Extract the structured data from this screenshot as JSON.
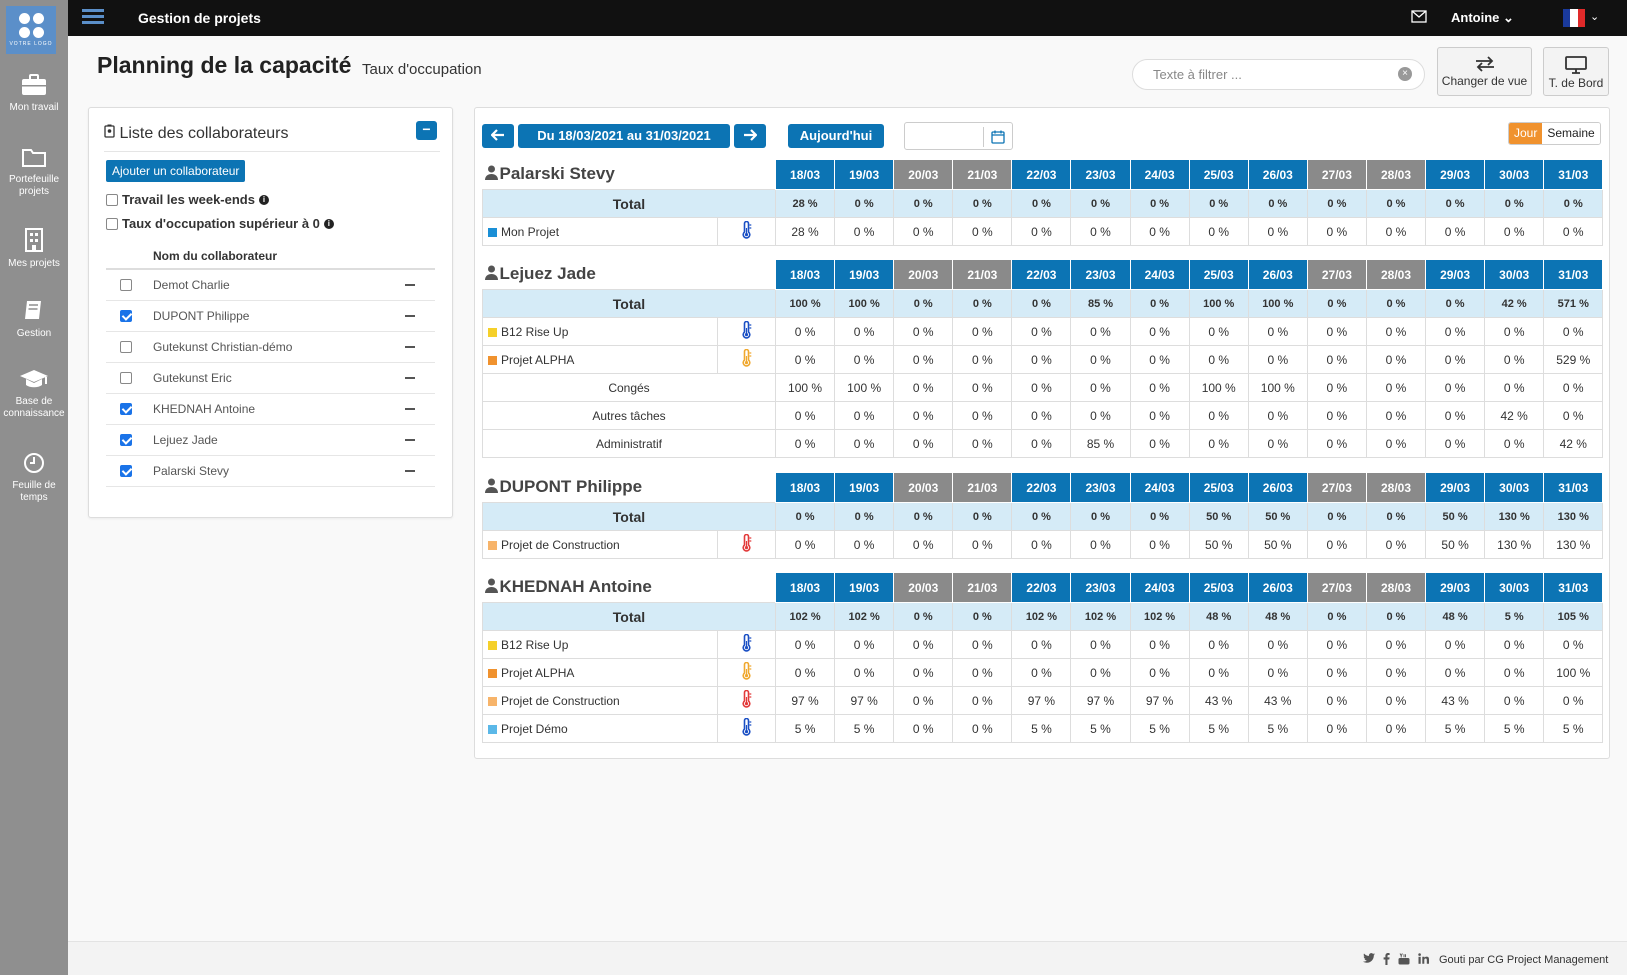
{
  "app": {
    "title": "Gestion de projets",
    "user": "Antoine",
    "logo_text": "VOTRE LOGO"
  },
  "sidebar": {
    "items": [
      {
        "label": "Mon travail",
        "icon": "briefcase-icon"
      },
      {
        "label": "Portefeuille projets",
        "icon": "folder-icon"
      },
      {
        "label": "Mes projets",
        "icon": "building-icon"
      },
      {
        "label": "Gestion",
        "icon": "book-icon"
      },
      {
        "label": "Base de connaissance",
        "icon": "graduation-cap-icon"
      },
      {
        "label": "Feuille de temps",
        "icon": "clock-icon"
      }
    ]
  },
  "page": {
    "title": "Planning de la capacité",
    "subtitle": "Taux d'occupation"
  },
  "filter": {
    "placeholder": "Texte à filtrer ..."
  },
  "buttons": {
    "change_view": "Changer de vue",
    "dashboard": "T. de Bord"
  },
  "left_panel": {
    "title": "Liste des collaborateurs",
    "add_button": "Ajouter un collaborateur",
    "opt_weekends": "Travail les week-ends",
    "opt_occupation": "Taux d'occupation supérieur à 0",
    "column_header": "Nom du collaborateur",
    "collaborators": [
      {
        "name": "Demot Charlie",
        "checked": false
      },
      {
        "name": "DUPONT Philippe",
        "checked": true
      },
      {
        "name": "Gutekunst Christian-démo",
        "checked": false
      },
      {
        "name": "Gutekunst Eric",
        "checked": false
      },
      {
        "name": "KHEDNAH Antoine",
        "checked": true
      },
      {
        "name": "Lejuez Jade",
        "checked": true
      },
      {
        "name": "Palarski Stevy",
        "checked": true
      }
    ]
  },
  "toolbar": {
    "range": "Du 18/03/2021 au 31/03/2021",
    "today": "Aujourd'hui",
    "view_day": "Jour",
    "view_week": "Semaine"
  },
  "planning": {
    "dates": [
      "18/03",
      "19/03",
      "20/03",
      "21/03",
      "22/03",
      "23/03",
      "24/03",
      "25/03",
      "26/03",
      "27/03",
      "28/03",
      "29/03",
      "30/03",
      "31/03"
    ],
    "weekend_idx": [
      2,
      3,
      9,
      10
    ],
    "total_label": "Total",
    "people": [
      {
        "name": "Palarski Stevy",
        "total": [
          [
            "28 %",
            "g"
          ],
          [
            "0 %",
            "g"
          ],
          [
            "0 %",
            "g"
          ],
          [
            "0 %",
            "g"
          ],
          [
            "0 %",
            "g"
          ],
          [
            "0 %",
            "g"
          ],
          [
            "0 %",
            "g"
          ],
          [
            "0 %",
            "g"
          ],
          [
            "0 %",
            "g"
          ],
          [
            "0 %",
            "g"
          ],
          [
            "0 %",
            "g"
          ],
          [
            "0 %",
            "g"
          ],
          [
            "0 %",
            "g"
          ],
          [
            "0 %",
            "g"
          ]
        ],
        "projects": [
          {
            "name": "Mon Projet",
            "color": "#1a8fd6",
            "thermo": "#1a4fc4",
            "values": [
              [
                "28 %",
                ""
              ],
              [
                "0 %",
                ""
              ],
              [
                "0 %",
                ""
              ],
              [
                "0 %",
                ""
              ],
              [
                "0 %",
                ""
              ],
              [
                "0 %",
                ""
              ],
              [
                "0 %",
                ""
              ],
              [
                "0 %",
                ""
              ],
              [
                "0 %",
                ""
              ],
              [
                "0 %",
                ""
              ],
              [
                "0 %",
                ""
              ],
              [
                "0 %",
                ""
              ],
              [
                "0 %",
                ""
              ],
              [
                "0 %",
                ""
              ]
            ]
          }
        ],
        "tasks": []
      },
      {
        "name": "Lejuez Jade",
        "total": [
          [
            "100 %",
            "o"
          ],
          [
            "100 %",
            "o"
          ],
          [
            "0 %",
            "g"
          ],
          [
            "0 %",
            "g"
          ],
          [
            "0 %",
            "g"
          ],
          [
            "85 %",
            "o"
          ],
          [
            "0 %",
            "g"
          ],
          [
            "100 %",
            "o"
          ],
          [
            "100 %",
            "o"
          ],
          [
            "0 %",
            "g"
          ],
          [
            "0 %",
            "g"
          ],
          [
            "0 %",
            "g"
          ],
          [
            "42 %",
            "g"
          ],
          [
            "571 %",
            "r"
          ]
        ],
        "projects": [
          {
            "name": "B12 Rise Up",
            "color": "#f5d02a",
            "thermo": "#1a4fc4",
            "values": [
              [
                "0 %",
                ""
              ],
              [
                "0 %",
                ""
              ],
              [
                "0 %",
                ""
              ],
              [
                "0 %",
                ""
              ],
              [
                "0 %",
                ""
              ],
              [
                "0 %",
                ""
              ],
              [
                "0 %",
                ""
              ],
              [
                "0 %",
                ""
              ],
              [
                "0 %",
                ""
              ],
              [
                "0 %",
                ""
              ],
              [
                "0 %",
                ""
              ],
              [
                "0 %",
                ""
              ],
              [
                "0 %",
                ""
              ],
              [
                "0 %",
                ""
              ]
            ]
          },
          {
            "name": "Projet ALPHA",
            "color": "#f0922e",
            "thermo": "#f0a82e",
            "values": [
              [
                "0 %",
                ""
              ],
              [
                "0 %",
                ""
              ],
              [
                "0 %",
                ""
              ],
              [
                "0 %",
                ""
              ],
              [
                "0 %",
                ""
              ],
              [
                "0 %",
                ""
              ],
              [
                "0 %",
                ""
              ],
              [
                "0 %",
                ""
              ],
              [
                "0 %",
                ""
              ],
              [
                "0 %",
                ""
              ],
              [
                "0 %",
                ""
              ],
              [
                "0 %",
                ""
              ],
              [
                "0 %",
                ""
              ],
              [
                "529 %",
                "r"
              ]
            ]
          }
        ],
        "tasks": [
          {
            "name": "Congés",
            "values": [
              [
                "100 %",
                "o"
              ],
              [
                "100 %",
                "o"
              ],
              [
                "0 %",
                ""
              ],
              [
                "0 %",
                ""
              ],
              [
                "0 %",
                ""
              ],
              [
                "0 %",
                ""
              ],
              [
                "0 %",
                ""
              ],
              [
                "100 %",
                "o"
              ],
              [
                "100 %",
                "o"
              ],
              [
                "0 %",
                ""
              ],
              [
                "0 %",
                ""
              ],
              [
                "0 %",
                ""
              ],
              [
                "0 %",
                ""
              ],
              [
                "0 %",
                ""
              ]
            ]
          },
          {
            "name": "Autres tâches",
            "values": [
              [
                "0 %",
                ""
              ],
              [
                "0 %",
                ""
              ],
              [
                "0 %",
                ""
              ],
              [
                "0 %",
                ""
              ],
              [
                "0 %",
                ""
              ],
              [
                "0 %",
                ""
              ],
              [
                "0 %",
                ""
              ],
              [
                "0 %",
                ""
              ],
              [
                "0 %",
                ""
              ],
              [
                "0 %",
                ""
              ],
              [
                "0 %",
                ""
              ],
              [
                "0 %",
                ""
              ],
              [
                "42 %",
                ""
              ],
              [
                "0 %",
                ""
              ]
            ]
          },
          {
            "name": "Administratif",
            "values": [
              [
                "0 %",
                ""
              ],
              [
                "0 %",
                ""
              ],
              [
                "0 %",
                ""
              ],
              [
                "0 %",
                ""
              ],
              [
                "0 %",
                ""
              ],
              [
                "85 %",
                "o"
              ],
              [
                "0 %",
                ""
              ],
              [
                "0 %",
                ""
              ],
              [
                "0 %",
                ""
              ],
              [
                "0 %",
                ""
              ],
              [
                "0 %",
                ""
              ],
              [
                "0 %",
                ""
              ],
              [
                "0 %",
                ""
              ],
              [
                "42 %",
                ""
              ]
            ]
          }
        ]
      },
      {
        "name": "DUPONT Philippe",
        "total": [
          [
            "0 %",
            "g"
          ],
          [
            "0 %",
            "g"
          ],
          [
            "0 %",
            "g"
          ],
          [
            "0 %",
            "g"
          ],
          [
            "0 %",
            "g"
          ],
          [
            "0 %",
            "g"
          ],
          [
            "0 %",
            "g"
          ],
          [
            "50 %",
            "g"
          ],
          [
            "50 %",
            "g"
          ],
          [
            "0 %",
            "g"
          ],
          [
            "0 %",
            "g"
          ],
          [
            "50 %",
            "g"
          ],
          [
            "130 %",
            "r"
          ],
          [
            "130 %",
            "r"
          ]
        ],
        "projects": [
          {
            "name": "Projet de Construction",
            "color": "#f7b46a",
            "thermo": "#e23a3a",
            "values": [
              [
                "0 %",
                ""
              ],
              [
                "0 %",
                ""
              ],
              [
                "0 %",
                ""
              ],
              [
                "0 %",
                ""
              ],
              [
                "0 %",
                ""
              ],
              [
                "0 %",
                ""
              ],
              [
                "0 %",
                ""
              ],
              [
                "50 %",
                ""
              ],
              [
                "50 %",
                ""
              ],
              [
                "0 %",
                ""
              ],
              [
                "0 %",
                ""
              ],
              [
                "50 %",
                ""
              ],
              [
                "130 %",
                "r"
              ],
              [
                "130 %",
                "r"
              ]
            ]
          }
        ],
        "tasks": []
      },
      {
        "name": "KHEDNAH Antoine",
        "total": [
          [
            "102 %",
            "r"
          ],
          [
            "102 %",
            "r"
          ],
          [
            "0 %",
            "g"
          ],
          [
            "0 %",
            "g"
          ],
          [
            "102 %",
            "r"
          ],
          [
            "102 %",
            "r"
          ],
          [
            "102 %",
            "r"
          ],
          [
            "48 %",
            "g"
          ],
          [
            "48 %",
            "g"
          ],
          [
            "0 %",
            "g"
          ],
          [
            "0 %",
            "g"
          ],
          [
            "48 %",
            "g"
          ],
          [
            "5 %",
            "g"
          ],
          [
            "105 %",
            "r"
          ]
        ],
        "projects": [
          {
            "name": "B12 Rise Up",
            "color": "#f5d02a",
            "thermo": "#1a4fc4",
            "values": [
              [
                "0 %",
                ""
              ],
              [
                "0 %",
                ""
              ],
              [
                "0 %",
                ""
              ],
              [
                "0 %",
                ""
              ],
              [
                "0 %",
                ""
              ],
              [
                "0 %",
                ""
              ],
              [
                "0 %",
                ""
              ],
              [
                "0 %",
                ""
              ],
              [
                "0 %",
                ""
              ],
              [
                "0 %",
                ""
              ],
              [
                "0 %",
                ""
              ],
              [
                "0 %",
                ""
              ],
              [
                "0 %",
                ""
              ],
              [
                "0 %",
                ""
              ]
            ]
          },
          {
            "name": "Projet ALPHA",
            "color": "#f0922e",
            "thermo": "#f0a82e",
            "values": [
              [
                "0 %",
                ""
              ],
              [
                "0 %",
                ""
              ],
              [
                "0 %",
                ""
              ],
              [
                "0 %",
                ""
              ],
              [
                "0 %",
                ""
              ],
              [
                "0 %",
                ""
              ],
              [
                "0 %",
                ""
              ],
              [
                "0 %",
                ""
              ],
              [
                "0 %",
                ""
              ],
              [
                "0 %",
                ""
              ],
              [
                "0 %",
                ""
              ],
              [
                "0 %",
                ""
              ],
              [
                "0 %",
                ""
              ],
              [
                "100 %",
                "o"
              ]
            ]
          },
          {
            "name": "Projet de Construction",
            "color": "#f7b46a",
            "thermo": "#e23a3a",
            "values": [
              [
                "97 %",
                "o"
              ],
              [
                "97 %",
                "o"
              ],
              [
                "0 %",
                ""
              ],
              [
                "0 %",
                ""
              ],
              [
                "97 %",
                "o"
              ],
              [
                "97 %",
                "o"
              ],
              [
                "97 %",
                "o"
              ],
              [
                "43 %",
                ""
              ],
              [
                "43 %",
                ""
              ],
              [
                "0 %",
                ""
              ],
              [
                "0 %",
                ""
              ],
              [
                "43 %",
                ""
              ],
              [
                "0 %",
                ""
              ],
              [
                "0 %",
                ""
              ]
            ]
          },
          {
            "name": "Projet Démo",
            "color": "#5bb8e8",
            "thermo": "#1a4fc4",
            "values": [
              [
                "5 %",
                ""
              ],
              [
                "5 %",
                ""
              ],
              [
                "0 %",
                ""
              ],
              [
                "0 %",
                ""
              ],
              [
                "5 %",
                ""
              ],
              [
                "5 %",
                ""
              ],
              [
                "5 %",
                ""
              ],
              [
                "5 %",
                ""
              ],
              [
                "5 %",
                ""
              ],
              [
                "0 %",
                ""
              ],
              [
                "0 %",
                ""
              ],
              [
                "5 %",
                ""
              ],
              [
                "5 %",
                ""
              ],
              [
                "5 %",
                ""
              ]
            ]
          }
        ],
        "tasks": []
      }
    ]
  },
  "footer": {
    "text": "Gouti par CG Project Management"
  }
}
